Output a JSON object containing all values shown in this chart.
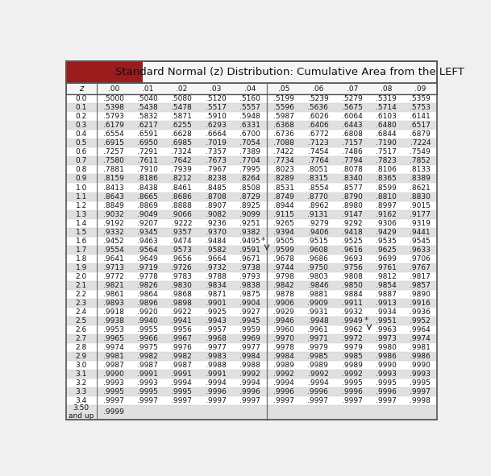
{
  "title": "Standard Normal (z) Distribution: Cumulative Area from the LEFT",
  "col_headers": [
    "z",
    ".00",
    ".01",
    ".02",
    ".03",
    ".04",
    ".05",
    ".06",
    ".07",
    ".08",
    ".09"
  ],
  "z_values": [
    "0.0",
    "0.1",
    "0.2",
    "0.3",
    "0.4",
    "0.5",
    "0.6",
    "0.7",
    "0.8",
    "0.9",
    "1.0",
    "1.1",
    "1.2",
    "1.3",
    "1.4",
    "1.5",
    "1.6",
    "1.7",
    "1.8",
    "1.9",
    "2.0",
    "2.1",
    "2.2",
    "2.3",
    "2.4",
    "2.5",
    "2.6",
    "2.7",
    "2.8",
    "2.9",
    "3.0",
    "3.1",
    "3.2",
    "3.3",
    "3.4",
    "3.50\nand up"
  ],
  "table_data": [
    [
      ".5000",
      ".5040",
      ".5080",
      ".5120",
      ".5160",
      ".5199",
      ".5239",
      ".5279",
      ".5319",
      ".5359"
    ],
    [
      ".5398",
      ".5438",
      ".5478",
      ".5517",
      ".5557",
      ".5596",
      ".5636",
      ".5675",
      ".5714",
      ".5753"
    ],
    [
      ".5793",
      ".5832",
      ".5871",
      ".5910",
      ".5948",
      ".5987",
      ".6026",
      ".6064",
      ".6103",
      ".6141"
    ],
    [
      ".6179",
      ".6217",
      ".6255",
      ".6293",
      ".6331",
      ".6368",
      ".6406",
      ".6443",
      ".6480",
      ".6517"
    ],
    [
      ".6554",
      ".6591",
      ".6628",
      ".6664",
      ".6700",
      ".6736",
      ".6772",
      ".6808",
      ".6844",
      ".6879"
    ],
    [
      ".6915",
      ".6950",
      ".6985",
      ".7019",
      ".7054",
      ".7088",
      ".7123",
      ".7157",
      ".7190",
      ".7224"
    ],
    [
      ".7257",
      ".7291",
      ".7324",
      ".7357",
      ".7389",
      ".7422",
      ".7454",
      ".7486",
      ".7517",
      ".7549"
    ],
    [
      ".7580",
      ".7611",
      ".7642",
      ".7673",
      ".7704",
      ".7734",
      ".7764",
      ".7794",
      ".7823",
      ".7852"
    ],
    [
      ".7881",
      ".7910",
      ".7939",
      ".7967",
      ".7995",
      ".8023",
      ".8051",
      ".8078",
      ".8106",
      ".8133"
    ],
    [
      ".8159",
      ".8186",
      ".8212",
      ".8238",
      ".8264",
      ".8289",
      ".8315",
      ".8340",
      ".8365",
      ".8389"
    ],
    [
      ".8413",
      ".8438",
      ".8461",
      ".8485",
      ".8508",
      ".8531",
      ".8554",
      ".8577",
      ".8599",
      ".8621"
    ],
    [
      ".8643",
      ".8665",
      ".8686",
      ".8708",
      ".8729",
      ".8749",
      ".8770",
      ".8790",
      ".8810",
      ".8830"
    ],
    [
      ".8849",
      ".8869",
      ".8888",
      ".8907",
      ".8925",
      ".8944",
      ".8962",
      ".8980",
      ".8997",
      ".9015"
    ],
    [
      ".9032",
      ".9049",
      ".9066",
      ".9082",
      ".9099",
      ".9115",
      ".9131",
      ".9147",
      ".9162",
      ".9177"
    ],
    [
      ".9192",
      ".9207",
      ".9222",
      ".9236",
      ".9251",
      ".9265",
      ".9279",
      ".9292",
      ".9306",
      ".9319"
    ],
    [
      ".9332",
      ".9345",
      ".9357",
      ".9370",
      ".9382",
      ".9394",
      ".9406",
      ".9418",
      ".9429",
      ".9441"
    ],
    [
      ".9452",
      ".9463",
      ".9474",
      ".9484",
      ".9495",
      ".9505",
      ".9515",
      ".9525",
      ".9535",
      ".9545"
    ],
    [
      ".9554",
      ".9564",
      ".9573",
      ".9582",
      ".9591",
      ".9599",
      ".9608",
      ".9616",
      ".9625",
      ".9633"
    ],
    [
      ".9641",
      ".9649",
      ".9656",
      ".9664",
      ".9671",
      ".9678",
      ".9686",
      ".9693",
      ".9699",
      ".9706"
    ],
    [
      ".9713",
      ".9719",
      ".9726",
      ".9732",
      ".9738",
      ".9744",
      ".9750",
      ".9756",
      ".9761",
      ".9767"
    ],
    [
      ".9772",
      ".9778",
      ".9783",
      ".9788",
      ".9793",
      ".9798",
      ".9803",
      ".9808",
      ".9812",
      ".9817"
    ],
    [
      ".9821",
      ".9826",
      ".9830",
      ".9834",
      ".9838",
      ".9842",
      ".9846",
      ".9850",
      ".9854",
      ".9857"
    ],
    [
      ".9861",
      ".9864",
      ".9868",
      ".9871",
      ".9875",
      ".9878",
      ".9881",
      ".9884",
      ".9887",
      ".9890"
    ],
    [
      ".9893",
      ".9896",
      ".9898",
      ".9901",
      ".9904",
      ".9906",
      ".9909",
      ".9911",
      ".9913",
      ".9916"
    ],
    [
      ".9918",
      ".9920",
      ".9922",
      ".9925",
      ".9927",
      ".9929",
      ".9931",
      ".9932",
      ".9934",
      ".9936"
    ],
    [
      ".9938",
      ".9940",
      ".9941",
      ".9943",
      ".9945",
      ".9946",
      ".9948",
      ".9949",
      ".9951",
      ".9952"
    ],
    [
      ".9953",
      ".9955",
      ".9956",
      ".9957",
      ".9959",
      ".9960",
      ".9961",
      ".9962",
      ".9963",
      ".9964"
    ],
    [
      ".9965",
      ".9966",
      ".9967",
      ".9968",
      ".9969",
      ".9970",
      ".9971",
      ".9972",
      ".9973",
      ".9974"
    ],
    [
      ".9974",
      ".9975",
      ".9976",
      ".9977",
      ".9977",
      ".9978",
      ".9979",
      ".9979",
      ".9980",
      ".9981"
    ],
    [
      ".9981",
      ".9982",
      ".9982",
      ".9983",
      ".9984",
      ".9984",
      ".9985",
      ".9985",
      ".9986",
      ".9986"
    ],
    [
      ".9987",
      ".9987",
      ".9987",
      ".9988",
      ".9988",
      ".9989",
      ".9989",
      ".9989",
      ".9990",
      ".9990"
    ],
    [
      ".9990",
      ".9991",
      ".9991",
      ".9991",
      ".9992",
      ".9992",
      ".9992",
      ".9992",
      ".9993",
      ".9993"
    ],
    [
      ".9993",
      ".9993",
      ".9994",
      ".9994",
      ".9994",
      ".9994",
      ".9994",
      ".9995",
      ".9995",
      ".9995"
    ],
    [
      ".9995",
      ".9995",
      ".9995",
      ".9996",
      ".9996",
      ".9996",
      ".9996",
      ".9996",
      ".9996",
      ".9997"
    ],
    [
      ".9997",
      ".9997",
      ".9997",
      ".9997",
      ".9997",
      ".9997",
      ".9997",
      ".9997",
      ".9997",
      ".9998"
    ],
    [
      ".9999",
      "",
      "",
      "",
      "",
      "",
      "",
      "",
      "",
      ""
    ]
  ],
  "header_red_bg": "#9B1C1C",
  "header_white_bg": "#f5f5f5",
  "alt_row_color": "#e0e0e0",
  "normal_row_color": "#ffffff",
  "last_row_color": "#e0e0e0",
  "text_color": "#111111",
  "border_color": "#555555",
  "divider_color": "#777777",
  "font_size": 6.5,
  "header_font_size": 7.5,
  "title_font_size": 9.5,
  "fig_width": 6.09,
  "fig_height": 5.91,
  "dpi": 100
}
